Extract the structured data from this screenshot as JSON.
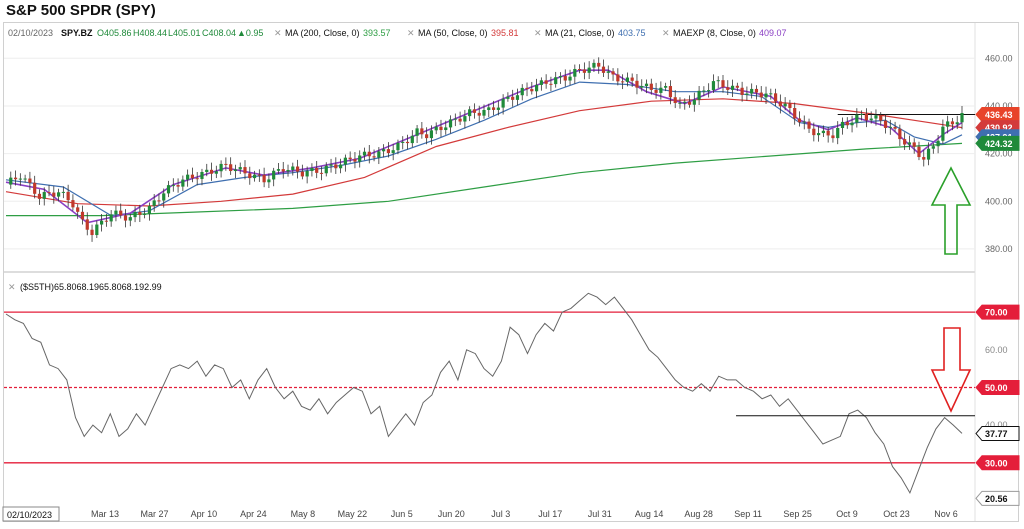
{
  "title": "S&P 500 SPDR (SPY)",
  "ohlc_header": {
    "date": "02/10/2023",
    "symbol": "SPY.BZ",
    "open": "O405.86",
    "high": "H408.44",
    "low": "L405.01",
    "close": "C408.04",
    "change": "▲0.95"
  },
  "legend": [
    {
      "label": "MA (200, Close, 0)",
      "value": "393.57",
      "color": "#2e9e44"
    },
    {
      "label": "MA (50, Close, 0)",
      "value": "395.81",
      "color": "#d33a3a"
    },
    {
      "label": "MA (21, Close, 0)",
      "value": "403.75",
      "color": "#3f6fb0"
    },
    {
      "label": "MAEXP (8, Close, 0)",
      "value": "409.07",
      "color": "#8a3fc4"
    }
  ],
  "price_badges": [
    {
      "value": "436.43",
      "color": "#e8442a"
    },
    {
      "value": "430.92",
      "color": "#d33a3a"
    },
    {
      "value": "427.91",
      "color": "#3f6fb0"
    },
    {
      "value": "424.32",
      "color": "#1f8a3a"
    }
  ],
  "oscillator_label": "($S5TH)65.8068.1965.8068.192.99",
  "osc_badges": [
    {
      "value": "70.00",
      "color": "#e41e3a"
    },
    {
      "value": "50.00",
      "color": "#e41e3a"
    },
    {
      "value": "37.77",
      "color": "#111111"
    },
    {
      "value": "30.00",
      "color": "#e41e3a"
    },
    {
      "value": "20.56",
      "color": "#ffffff"
    }
  ],
  "current_date_label": "02/10/2023",
  "chart_data": [
    {
      "type": "candlestick",
      "title": "S&P 500 SPDR (SPY)",
      "ylim": [
        372,
        466
      ],
      "yticks": [
        380,
        400,
        420,
        440,
        460
      ],
      "x_labels": [
        "Mar 13",
        "Mar 27",
        "Apr 10",
        "Apr 24",
        "May 8",
        "May 22",
        "Jun 5",
        "Jun 20",
        "Jul 3",
        "Jul 17",
        "Jul 31",
        "Aug 14",
        "Aug 28",
        "Sep 11",
        "Sep 25",
        "Oct 9",
        "Oct 23",
        "Nov 6"
      ],
      "close_trajectory": [
        [
          0,
          407
        ],
        [
          3,
          411
        ],
        [
          7,
          402
        ],
        [
          11,
          404
        ],
        [
          14,
          399
        ],
        [
          16,
          391
        ],
        [
          18,
          387
        ],
        [
          22,
          395
        ],
        [
          26,
          393
        ],
        [
          30,
          397
        ],
        [
          33,
          404
        ],
        [
          37,
          409
        ],
        [
          42,
          412
        ],
        [
          46,
          415
        ],
        [
          50,
          412
        ],
        [
          54,
          409
        ],
        [
          58,
          414
        ],
        [
          62,
          412
        ],
        [
          66,
          413
        ],
        [
          70,
          416
        ],
        [
          74,
          419
        ],
        [
          78,
          420
        ],
        [
          82,
          423
        ],
        [
          86,
          429
        ],
        [
          88,
          428
        ],
        [
          92,
          432
        ],
        [
          97,
          437
        ],
        [
          101,
          438
        ],
        [
          105,
          443
        ],
        [
          109,
          447
        ],
        [
          113,
          450
        ],
        [
          117,
          452
        ],
        [
          120,
          455
        ],
        [
          122,
          456
        ],
        [
          124,
          457
        ],
        [
          127,
          452
        ],
        [
          131,
          450
        ],
        [
          135,
          447
        ],
        [
          138,
          447
        ],
        [
          141,
          440
        ],
        [
          144,
          443
        ],
        [
          148,
          450
        ],
        [
          151,
          448
        ],
        [
          154,
          446
        ],
        [
          159,
          445
        ],
        [
          163,
          440
        ],
        [
          166,
          434
        ],
        [
          168,
          430
        ],
        [
          171,
          428
        ],
        [
          173,
          428
        ],
        [
          175,
          432
        ],
        [
          177,
          434
        ],
        [
          179,
          436
        ],
        [
          183,
          434
        ],
        [
          186,
          429
        ],
        [
          188,
          425
        ],
        [
          190,
          422
        ],
        [
          192,
          418
        ],
        [
          194,
          423
        ],
        [
          196,
          431
        ],
        [
          198,
          433
        ],
        [
          200,
          436
        ]
      ],
      "moving_averages": [
        {
          "name": "MA (200, Close, 0)",
          "points": [
            [
              0,
              394
            ],
            [
              20,
              394
            ],
            [
              40,
              395.5
            ],
            [
              60,
              397
            ],
            [
              80,
              400
            ],
            [
              100,
              406
            ],
            [
              120,
              412
            ],
            [
              140,
              416
            ],
            [
              160,
              419
            ],
            [
              180,
              422
            ],
            [
              200,
              424.3
            ]
          ]
        },
        {
          "name": "MA (50, Close, 0)",
          "points": [
            [
              0,
              404
            ],
            [
              15,
              399
            ],
            [
              30,
              398
            ],
            [
              45,
              400
            ],
            [
              60,
              403
            ],
            [
              75,
              410
            ],
            [
              90,
              423
            ],
            [
              105,
              431
            ],
            [
              120,
              438
            ],
            [
              135,
              442
            ],
            [
              150,
              443
            ],
            [
              165,
              441
            ],
            [
              180,
              437
            ],
            [
              190,
              434
            ],
            [
              200,
              430.9
            ]
          ]
        },
        {
          "name": "MA (21, Close, 0)",
          "points": [
            [
              0,
              409
            ],
            [
              12,
              406
            ],
            [
              22,
              394
            ],
            [
              30,
              396
            ],
            [
              40,
              407
            ],
            [
              50,
              410
            ],
            [
              60,
              412
            ],
            [
              70,
              415
            ],
            [
              80,
              419
            ],
            [
              90,
              426
            ],
            [
              100,
              434
            ],
            [
              110,
              443
            ],
            [
              120,
              450
            ],
            [
              130,
              449
            ],
            [
              140,
              446
            ],
            [
              150,
              446
            ],
            [
              158,
              444
            ],
            [
              166,
              433
            ],
            [
              172,
              431
            ],
            [
              178,
              433
            ],
            [
              184,
              434
            ],
            [
              190,
              427
            ],
            [
              196,
              424
            ],
            [
              200,
              427.9
            ]
          ]
        },
        {
          "name": "MAEXP (8, Close, 0)",
          "points": [
            [
              0,
              408
            ],
            [
              8,
              405
            ],
            [
              17,
              391
            ],
            [
              26,
              395
            ],
            [
              35,
              407
            ],
            [
              46,
              414
            ],
            [
              54,
              411
            ],
            [
              64,
              414
            ],
            [
              74,
              418
            ],
            [
              86,
              428
            ],
            [
              98,
              438
            ],
            [
              110,
              448
            ],
            [
              120,
              455
            ],
            [
              126,
              455
            ],
            [
              134,
              446
            ],
            [
              142,
              441
            ],
            [
              150,
              448
            ],
            [
              160,
              444
            ],
            [
              166,
              434
            ],
            [
              172,
              430
            ],
            [
              178,
              435
            ],
            [
              185,
              431
            ],
            [
              191,
              420
            ],
            [
              196,
              428
            ],
            [
              200,
              433
            ]
          ]
        }
      ],
      "reference_line": 436.43
    },
    {
      "type": "line",
      "name": "($S5TH)",
      "ylim": [
        18,
        78
      ],
      "levels": [
        70,
        50,
        30
      ],
      "values": [
        [
          0,
          69.5
        ],
        [
          2,
          68
        ],
        [
          4,
          67
        ],
        [
          6,
          63
        ],
        [
          8,
          62
        ],
        [
          10,
          56
        ],
        [
          12,
          55
        ],
        [
          14,
          52
        ],
        [
          16,
          42
        ],
        [
          18,
          37
        ],
        [
          20,
          40
        ],
        [
          22,
          38
        ],
        [
          24,
          43
        ],
        [
          26,
          37
        ],
        [
          28,
          39
        ],
        [
          30,
          43
        ],
        [
          32,
          40
        ],
        [
          34,
          45
        ],
        [
          36,
          50
        ],
        [
          38,
          55
        ],
        [
          40,
          56
        ],
        [
          42,
          55
        ],
        [
          44,
          57
        ],
        [
          46,
          53
        ],
        [
          48,
          56
        ],
        [
          50,
          55
        ],
        [
          52,
          50
        ],
        [
          54,
          52
        ],
        [
          56,
          47
        ],
        [
          58,
          52
        ],
        [
          60,
          55
        ],
        [
          62,
          50
        ],
        [
          64,
          47
        ],
        [
          66,
          49
        ],
        [
          68,
          45
        ],
        [
          70,
          44
        ],
        [
          72,
          47
        ],
        [
          74,
          43
        ],
        [
          76,
          46
        ],
        [
          78,
          48
        ],
        [
          80,
          50
        ],
        [
          82,
          49
        ],
        [
          84,
          43
        ],
        [
          86,
          45
        ],
        [
          88,
          37
        ],
        [
          90,
          40
        ],
        [
          92,
          43
        ],
        [
          94,
          40
        ],
        [
          96,
          46
        ],
        [
          98,
          48
        ],
        [
          100,
          54
        ],
        [
          102,
          57
        ],
        [
          104,
          52
        ],
        [
          106,
          60
        ],
        [
          108,
          59
        ],
        [
          110,
          55
        ],
        [
          112,
          53
        ],
        [
          114,
          57
        ],
        [
          116,
          66
        ],
        [
          118,
          64
        ],
        [
          120,
          59
        ],
        [
          122,
          64
        ],
        [
          124,
          67
        ],
        [
          126,
          65
        ],
        [
          128,
          70
        ],
        [
          130,
          71
        ],
        [
          132,
          73
        ],
        [
          134,
          75
        ],
        [
          136,
          74
        ],
        [
          138,
          72
        ],
        [
          140,
          74
        ],
        [
          142,
          71
        ],
        [
          144,
          68
        ],
        [
          146,
          64
        ],
        [
          148,
          60
        ],
        [
          150,
          58
        ],
        [
          152,
          55
        ],
        [
          154,
          52
        ],
        [
          156,
          50
        ],
        [
          158,
          49
        ],
        [
          160,
          51
        ],
        [
          162,
          49
        ],
        [
          164,
          53
        ],
        [
          166,
          52
        ],
        [
          168,
          52
        ],
        [
          170,
          50
        ],
        [
          172,
          49
        ],
        [
          174,
          47
        ],
        [
          176,
          48
        ],
        [
          178,
          45
        ],
        [
          180,
          47
        ],
        [
          182,
          44
        ],
        [
          184,
          41
        ],
        [
          186,
          38
        ],
        [
          188,
          35
        ],
        [
          190,
          36
        ],
        [
          192,
          37
        ],
        [
          194,
          43
        ],
        [
          196,
          44
        ],
        [
          198,
          42
        ],
        [
          200,
          38
        ],
        [
          202,
          35
        ],
        [
          204,
          29
        ],
        [
          206,
          26
        ],
        [
          208,
          22
        ],
        [
          210,
          28
        ],
        [
          212,
          34
        ],
        [
          214,
          39
        ],
        [
          216,
          42
        ],
        [
          218,
          40
        ],
        [
          220,
          37.8
        ]
      ],
      "last_value": 37.77,
      "current_min_label": 20.56
    }
  ]
}
